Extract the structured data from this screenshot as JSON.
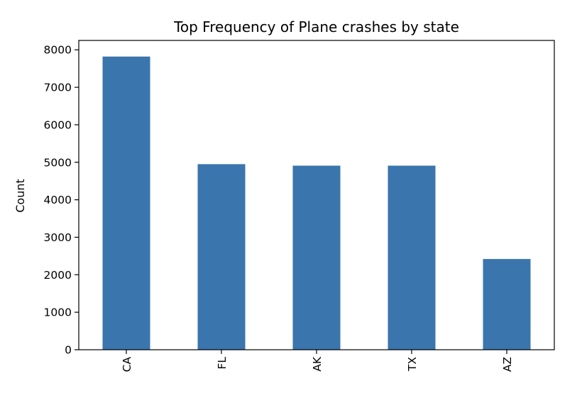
{
  "chart_data": {
    "type": "bar",
    "title": "Top Frequency of Plane crashes by state",
    "xlabel": "",
    "ylabel": "Count",
    "categories": [
      "CA",
      "FL",
      "AK",
      "TX",
      "AZ"
    ],
    "values": [
      7820,
      4950,
      4910,
      4910,
      2420
    ],
    "ylim": [
      0,
      8250
    ],
    "yticks": [
      0,
      1000,
      2000,
      3000,
      4000,
      5000,
      6000,
      7000,
      8000
    ],
    "grid": false,
    "legend": "none",
    "colors": {
      "bar": "#3a75ad"
    }
  }
}
